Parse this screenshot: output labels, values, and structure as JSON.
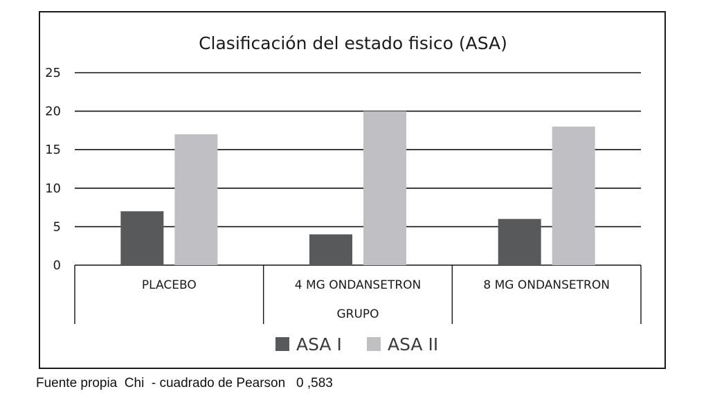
{
  "chart_data": {
    "type": "bar",
    "title": "Clasificación del estado fisico (ASA)",
    "categories": [
      "PLACEBO",
      "4 MG ONDANSETRON",
      "8 MG ONDANSETRON"
    ],
    "xlabel": "GRUPO",
    "ylabel": "",
    "ylim": [
      0,
      25
    ],
    "yticks": [
      0,
      5,
      10,
      15,
      20,
      25
    ],
    "grid": true,
    "legend_position": "bottom",
    "series": [
      {
        "name": "ASA I",
        "values": [
          7,
          4,
          6
        ],
        "color": "#58595b"
      },
      {
        "name": "ASA II",
        "values": [
          17,
          20,
          18
        ],
        "color": "#c0c0c4"
      }
    ]
  },
  "footer": {
    "note": "Fuente propia  Chi  - cuadrado de Pearson   0 ,583"
  }
}
